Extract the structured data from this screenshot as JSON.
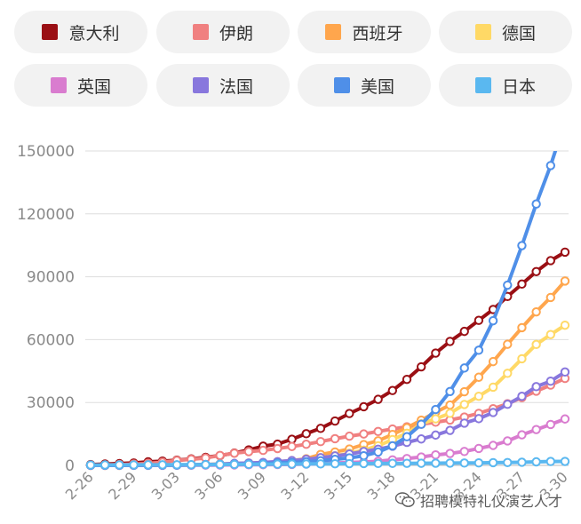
{
  "chart_data": {
    "type": "line",
    "x": [
      "2-26",
      "2-27",
      "2-28",
      "2-29",
      "3-01",
      "3-02",
      "3-03",
      "3-04",
      "3-05",
      "3-06",
      "3-07",
      "3-08",
      "3-09",
      "3-10",
      "3-11",
      "3-12",
      "3-13",
      "3-14",
      "3-15",
      "3-16",
      "3-17",
      "3-18",
      "3-19",
      "3-20",
      "3-21",
      "3-22",
      "3-23",
      "3-24",
      "3-25",
      "3-26",
      "3-27",
      "3-28",
      "3-29",
      "3-30"
    ],
    "x_tick_labels": [
      "2-26",
      "2-29",
      "3-03",
      "3-06",
      "3-09",
      "3-12",
      "3-15",
      "3-18",
      "3-21",
      "3-24",
      "3-27",
      "3-30"
    ],
    "y_ticks": [
      0,
      30000,
      60000,
      90000,
      120000,
      150000
    ],
    "y_tick_labels": [
      "0",
      "30000",
      "60000",
      "90000",
      "120000",
      "150000"
    ],
    "ylim": [
      0,
      150000
    ],
    "grid": "horizontal",
    "legend_position": "top",
    "series": [
      {
        "name": "意大利",
        "color": "#9a0f14",
        "values": [
          400,
          650,
          890,
          1130,
          1690,
          2040,
          2500,
          3090,
          3860,
          4640,
          5880,
          7380,
          9170,
          10150,
          12460,
          15110,
          17660,
          21160,
          24750,
          27980,
          31510,
          35710,
          41040,
          47020,
          53580,
          59140,
          63930,
          69180,
          74390,
          80590,
          86500,
          92470,
          97690,
          101740
        ]
      },
      {
        "name": "伊朗",
        "color": "#f08080",
        "values": [
          140,
          250,
          390,
          590,
          980,
          1500,
          2340,
          2920,
          3510,
          4750,
          5820,
          6560,
          7160,
          8040,
          9000,
          10080,
          11360,
          12730,
          13940,
          14990,
          16170,
          17360,
          18410,
          19640,
          20610,
          21640,
          23050,
          24810,
          27020,
          29410,
          32330,
          35410,
          38310,
          41500
        ]
      },
      {
        "name": "西班牙",
        "color": "#ffa64d",
        "values": [
          20,
          30,
          40,
          60,
          80,
          120,
          170,
          230,
          380,
          500,
          670,
          1020,
          1230,
          1700,
          2280,
          3150,
          5230,
          6390,
          7800,
          9940,
          11750,
          14760,
          17970,
          21570,
          25370,
          28770,
          35140,
          42050,
          49520,
          57790,
          65720,
          73240,
          80110,
          87960
        ]
      },
      {
        "name": "德国",
        "color": "#ffd966",
        "values": [
          20,
          40,
          60,
          70,
          130,
          160,
          200,
          260,
          400,
          680,
          800,
          1040,
          1180,
          1460,
          1910,
          2750,
          3670,
          4590,
          5810,
          7270,
          9360,
          12330,
          15320,
          19850,
          22210,
          24870,
          29060,
          32990,
          37320,
          43940,
          50870,
          57700,
          62430,
          66880
        ]
      },
      {
        "name": "英国",
        "color": "#d97ccf",
        "values": [
          10,
          20,
          20,
          20,
          40,
          40,
          50,
          90,
          120,
          160,
          210,
          280,
          320,
          380,
          460,
          590,
          800,
          1140,
          1390,
          1550,
          1950,
          2630,
          3270,
          3980,
          5010,
          5680,
          6650,
          8080,
          9530,
          11660,
          14580,
          17090,
          19520,
          22140
        ]
      },
      {
        "name": "法国",
        "color": "#8877dd",
        "values": [
          20,
          40,
          60,
          100,
          130,
          190,
          210,
          280,
          420,
          610,
          950,
          1120,
          1410,
          1780,
          2280,
          2880,
          3660,
          4500,
          5420,
          6630,
          7720,
          9130,
          10990,
          12610,
          14460,
          16690,
          20150,
          22300,
          25230,
          29150,
          32960,
          37570,
          40170,
          44550
        ]
      },
      {
        "name": "美国",
        "color": "#4f8fe8",
        "values": [
          60,
          60,
          60,
          70,
          80,
          110,
          130,
          220,
          330,
          440,
          530,
          600,
          800,
          1130,
          1400,
          1730,
          2210,
          2880,
          3570,
          4600,
          6360,
          9340,
          13680,
          19620,
          26660,
          35240,
          46450,
          54940,
          69020,
          86010,
          104860,
          124690,
          143050,
          164250
        ]
      },
      {
        "name": "日本",
        "color": "#5ab8f0",
        "values": [
          190,
          210,
          230,
          240,
          260,
          270,
          290,
          320,
          360,
          420,
          460,
          500,
          530,
          580,
          620,
          680,
          710,
          780,
          830,
          880,
          910,
          950,
          990,
          1010,
          1050,
          1090,
          1130,
          1190,
          1310,
          1370,
          1490,
          1690,
          1860,
          1900
        ]
      }
    ]
  },
  "watermark": {
    "text": "招聘模特礼仪演艺人才"
  }
}
